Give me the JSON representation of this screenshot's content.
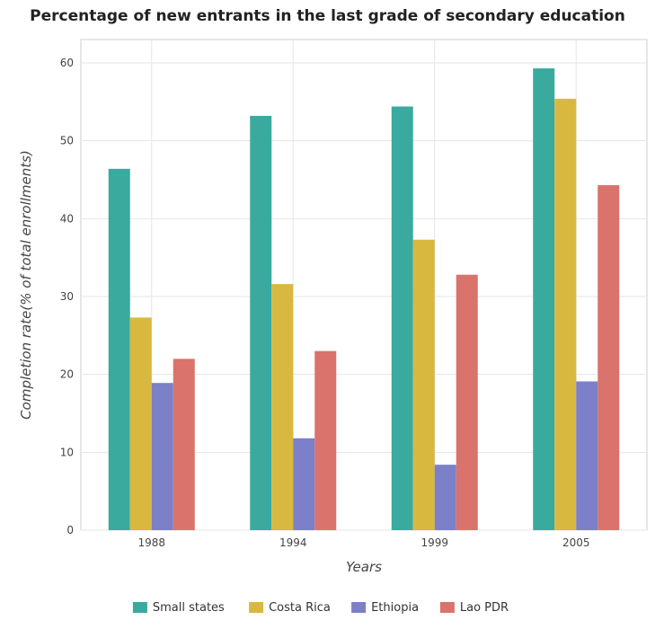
{
  "chart_data": {
    "type": "bar",
    "title": "Percentage of new entrants in the last grade of secondary education",
    "xlabel": "Years",
    "ylabel": "Completion rate(% of total enrollments)",
    "categories": [
      "1988",
      "1994",
      "1999",
      "2005"
    ],
    "ylim": [
      0,
      63
    ],
    "yticks": [
      0,
      10,
      20,
      30,
      40,
      50,
      60
    ],
    "grid": true,
    "legend_position": "bottom-center",
    "series": [
      {
        "name": "Small states",
        "color": "#3aaa9e",
        "values": [
          46.4,
          53.2,
          54.4,
          59.3
        ]
      },
      {
        "name": "Costa Rica",
        "color": "#d9b840",
        "values": [
          27.3,
          31.6,
          37.3,
          55.4
        ]
      },
      {
        "name": "Ethiopia",
        "color": "#7b80c8",
        "values": [
          18.9,
          11.8,
          8.4,
          19.1
        ]
      },
      {
        "name": "Lao PDR",
        "color": "#d9736b",
        "values": [
          22.0,
          23.0,
          32.8,
          44.3
        ]
      }
    ]
  }
}
